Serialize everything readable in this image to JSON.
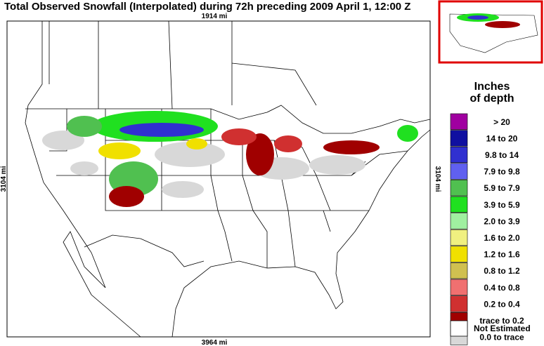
{
  "title": "Total Observed Snowfall (Interpolated) during 72h preceding 2009 April 1, 12:00 Z",
  "distances": {
    "top": "1914 mi",
    "bottom": "3964 mi",
    "left": "3104 mi",
    "right": "3104 mi"
  },
  "legend": {
    "title": [
      "Inches",
      "of depth"
    ],
    "items": [
      {
        "label": ">  20",
        "color": "#a000a0"
      },
      {
        "label": "14 to  20",
        "color": "#1010a0"
      },
      {
        "label": "9.8 to   14",
        "color": "#3030d0"
      },
      {
        "label": "7.9 to  9.8",
        "color": "#6060f0"
      },
      {
        "label": "5.9 to  7.9",
        "color": "#50c050"
      },
      {
        "label": "3.9 to  5.9",
        "color": "#20e020"
      },
      {
        "label": "2.0 to  3.9",
        "color": "#a0f0a0"
      },
      {
        "label": "1.6 to  2.0",
        "color": "#f0f080"
      },
      {
        "label": "1.2 to  1.6",
        "color": "#f0e000"
      },
      {
        "label": "0.8 to  1.2",
        "color": "#d0c050"
      },
      {
        "label": "0.4 to  0.8",
        "color": "#f07070"
      },
      {
        "label": "0.2 to  0.4",
        "color": "#d03030"
      },
      {
        "label": "trace to  0.2",
        "color": "#a00000"
      },
      {
        "label": "0.0 to trace",
        "color": "#d8d8d8"
      }
    ],
    "not_estimated": {
      "label": "Not Estimated",
      "color": "#ffffff"
    }
  }
}
